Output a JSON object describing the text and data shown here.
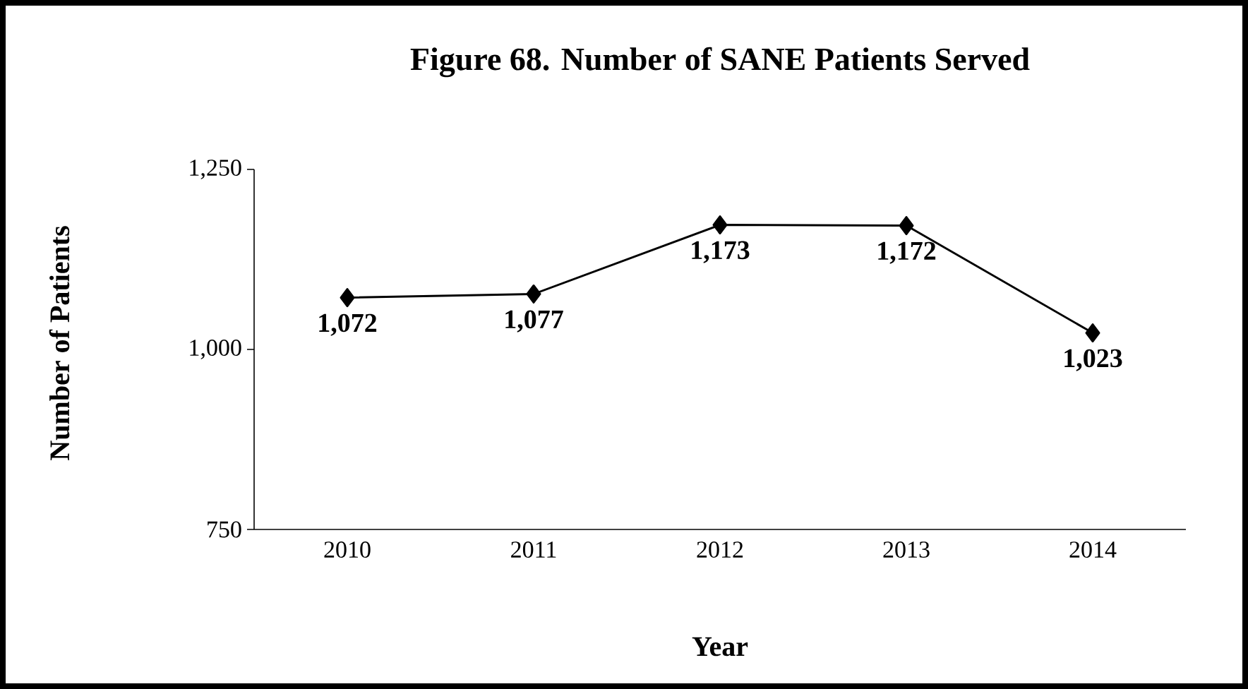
{
  "chart_data": {
    "type": "line",
    "title": "Figure 68.  Number of SANE Patients Served",
    "xlabel": "Year",
    "ylabel": "Number of Patients",
    "categories": [
      "2010",
      "2011",
      "2012",
      "2013",
      "2014"
    ],
    "series": [
      {
        "color": "#000000",
        "values": [
          1072,
          1077,
          1173,
          1172,
          1023
        ],
        "value_labels": [
          "1,072",
          "1,077",
          "1,173",
          "1,172",
          "1,023"
        ]
      }
    ],
    "ylim": [
      750,
      1250
    ],
    "yticks": [
      {
        "value": 750,
        "label": "750"
      },
      {
        "value": 1000,
        "label": "1,000"
      },
      {
        "value": 1250,
        "label": "1,250"
      }
    ],
    "grid": false,
    "marker": "diamond",
    "line_style": "solid"
  }
}
